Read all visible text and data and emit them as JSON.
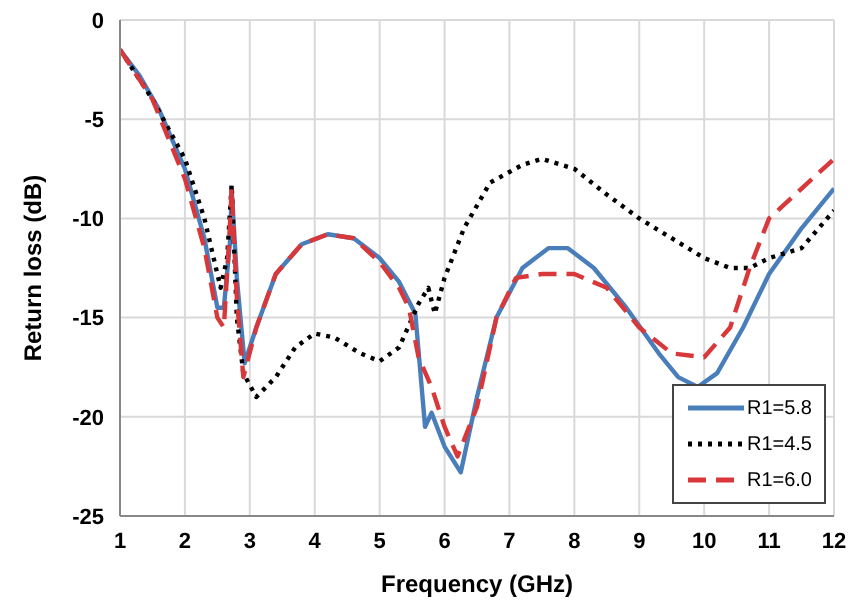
{
  "chart_data": {
    "type": "line",
    "xlabel": "Frequency (GHz)",
    "ylabel": "Return loss (dB)",
    "xlim": [
      1,
      12
    ],
    "xticks": [
      1,
      2,
      3,
      4,
      5,
      6,
      7,
      8,
      9,
      10,
      11,
      12
    ],
    "ylim": [
      -25,
      0
    ],
    "yticks": [
      -25,
      -20,
      -15,
      -10,
      -5,
      0
    ],
    "grid": true,
    "legend": "bottom right",
    "marker": "none",
    "series": [
      {
        "name": "R1=5.8",
        "color": "#4a7ebb",
        "line_style": "solid",
        "x": [
          1,
          1.3,
          1.6,
          2,
          2.3,
          2.5,
          2.6,
          2.7,
          2.72,
          2.8,
          2.92,
          3.1,
          3.4,
          3.8,
          4.2,
          4.6,
          5,
          5.3,
          5.55,
          5.7,
          5.8,
          6,
          6.25,
          6.5,
          6.8,
          7.2,
          7.6,
          7.9,
          8.3,
          8.8,
          9.3,
          9.6,
          9.9,
          10.2,
          10.6,
          11,
          11.5,
          12
        ],
        "values": [
          -1.5,
          -2.8,
          -4.5,
          -7.5,
          -11,
          -14.5,
          -14.5,
          -11,
          -8.5,
          -13,
          -17.3,
          -15.5,
          -12.8,
          -11.3,
          -10.8,
          -11,
          -12,
          -13.2,
          -14.8,
          -20.5,
          -19.8,
          -21.5,
          -22.8,
          -19,
          -15,
          -12.5,
          -11.5,
          -11.5,
          -12.5,
          -14.5,
          -16.8,
          -18,
          -18.5,
          -17.8,
          -15.5,
          -12.8,
          -10.5,
          -8.5
        ]
      },
      {
        "name": "R1=4.5",
        "color": "#000000",
        "line_style": "dotted",
        "x": [
          1,
          1.5,
          2,
          2.3,
          2.55,
          2.65,
          2.72,
          2.8,
          2.9,
          3.1,
          3.4,
          3.7,
          4,
          4.3,
          4.7,
          5,
          5.3,
          5.6,
          5.75,
          5.85,
          6,
          6.3,
          6.7,
          7.2,
          7.5,
          8,
          8.5,
          9,
          9.5,
          10,
          10.4,
          10.7,
          11,
          11.5,
          12
        ],
        "values": [
          -1.5,
          -4,
          -7,
          -10,
          -13.5,
          -12,
          -8.3,
          -15,
          -17.8,
          -19,
          -18,
          -16.5,
          -15.8,
          -16,
          -16.8,
          -17.2,
          -16.5,
          -14.3,
          -13.5,
          -14.8,
          -13,
          -10.5,
          -8.2,
          -7.3,
          -7,
          -7.5,
          -8.8,
          -10,
          -11,
          -12,
          -12.5,
          -12.5,
          -12,
          -11.5,
          -9.6
        ]
      },
      {
        "name": "R1=6.0",
        "color": "#d9383a",
        "line_style": "dashed",
        "x": [
          1,
          1.5,
          2,
          2.3,
          2.5,
          2.6,
          2.7,
          2.72,
          2.8,
          2.9,
          3.1,
          3.4,
          3.8,
          4.2,
          4.6,
          5,
          5.3,
          5.45,
          5.6,
          5.8,
          6,
          6.2,
          6.5,
          6.8,
          7.1,
          7.5,
          8,
          8.5,
          9,
          9.5,
          10,
          10.4,
          10.7,
          11,
          11.5,
          12
        ],
        "values": [
          -1.5,
          -4,
          -8,
          -11.5,
          -15,
          -15.5,
          -10,
          -8.5,
          -14,
          -18,
          -15.5,
          -12.8,
          -11.3,
          -10.8,
          -11,
          -12.2,
          -13.5,
          -14.5,
          -17,
          -18.5,
          -20.5,
          -22,
          -19.5,
          -15,
          -13,
          -12.8,
          -12.8,
          -13.5,
          -15.5,
          -16.8,
          -17,
          -15.5,
          -12.5,
          -10,
          -8.5,
          -7
        ]
      }
    ]
  }
}
